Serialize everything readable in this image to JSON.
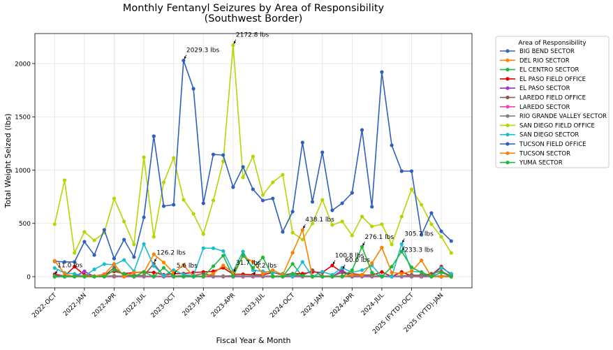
{
  "chart_data": {
    "type": "line",
    "title": "Monthly Fentanyl Seizures by Area of Responsibility",
    "subtitle": "(Southwest Border)",
    "xlabel": "Fiscal Year & Month",
    "ylabel": "Total Weight Seized (lbs)",
    "ylim": [
      -105,
      2282
    ],
    "yticks": [
      0,
      500,
      1000,
      1500,
      2000
    ],
    "month_count": 41,
    "xticks": [
      {
        "index": 0,
        "label": "2022-OCT"
      },
      {
        "index": 3,
        "label": "2022-JAN"
      },
      {
        "index": 6,
        "label": "2022-APR"
      },
      {
        "index": 9,
        "label": "2022-JUL"
      },
      {
        "index": 12,
        "label": "2023-OCT"
      },
      {
        "index": 15,
        "label": "2023-JAN"
      },
      {
        "index": 18,
        "label": "2023-APR"
      },
      {
        "index": 21,
        "label": "2023-JUL"
      },
      {
        "index": 24,
        "label": "2024-OCT"
      },
      {
        "index": 27,
        "label": "2024-JAN"
      },
      {
        "index": 30,
        "label": "2024-APR"
      },
      {
        "index": 33,
        "label": "2024-JUL"
      },
      {
        "index": 36,
        "label": "2025 (FYTD)-OCT"
      },
      {
        "index": 39,
        "label": "2025 (FYTD)-JAN"
      }
    ],
    "grid": true,
    "legend": {
      "title": "Area of Responsibility",
      "placement": "outside-right"
    },
    "series": [
      {
        "name": "BIG BEND SECTOR",
        "color": "#3465c0",
        "values": [
          2,
          1,
          2,
          1,
          0,
          2,
          1,
          1,
          2,
          1,
          3,
          1,
          0,
          2,
          1,
          1,
          2,
          1,
          0,
          1,
          2,
          1,
          1,
          0,
          2,
          1,
          0,
          1,
          2,
          1,
          0,
          1,
          1,
          2,
          0,
          1,
          1,
          0,
          1,
          2,
          1
        ]
      },
      {
        "name": "DEL RIO SECTOR",
        "color": "#ff8000",
        "values": [
          5,
          2,
          3,
          1,
          2,
          4,
          10,
          2,
          3,
          2,
          5,
          2,
          3,
          2,
          1,
          2,
          3,
          4,
          2,
          5,
          3,
          2,
          4,
          2,
          3,
          5,
          2,
          1,
          2,
          3,
          2,
          4,
          3,
          2,
          1,
          3,
          2,
          3,
          1,
          2,
          1
        ]
      },
      {
        "name": "EL CENTRO SECTOR",
        "color": "#1fb83a",
        "values": [
          0,
          0,
          0,
          0,
          0,
          0,
          0,
          0,
          0,
          0,
          0,
          0,
          0,
          0,
          0,
          0,
          0,
          0,
          0,
          0,
          0,
          0,
          0,
          0,
          120,
          0,
          0,
          0,
          0,
          0,
          0,
          0,
          0,
          0,
          0,
          0,
          0,
          0,
          0,
          0,
          0
        ]
      },
      {
        "name": "EL PASO FIELD OFFICE",
        "color": "#e00000",
        "values": [
          22,
          5,
          94,
          17,
          5,
          22,
          50,
          28,
          39,
          44,
          39,
          17,
          28,
          28,
          39,
          44,
          50,
          83,
          22,
          22,
          17,
          17,
          39,
          17,
          28,
          28,
          44,
          39,
          105,
          39,
          28,
          17,
          13,
          44,
          0,
          44,
          7,
          17,
          13,
          94,
          17
        ]
      },
      {
        "name": "EL PASO SECTOR",
        "color": "#9933cc",
        "values": [
          0,
          0,
          0,
          50,
          0,
          0,
          0,
          0,
          0,
          0,
          0,
          0,
          0,
          0,
          0,
          0,
          0,
          0,
          0,
          0,
          0,
          0,
          0,
          0,
          0,
          0,
          0,
          0,
          0,
          60,
          0,
          0,
          0,
          0,
          0,
          0,
          0,
          0,
          0,
          0,
          0
        ]
      },
      {
        "name": "LAREDO FIELD OFFICE",
        "color": "#8c564b",
        "values": [
          10,
          5,
          10,
          5,
          5,
          10,
          83,
          10,
          15,
          10,
          122,
          5,
          5,
          10,
          10,
          30,
          5,
          5,
          10,
          5,
          5,
          5,
          5,
          5,
          10,
          10,
          61,
          5,
          5,
          39,
          5,
          17,
          5,
          5,
          5,
          5,
          17,
          10,
          28,
          50,
          5
        ]
      },
      {
        "name": "LAREDO SECTOR",
        "color": "#ee44bb",
        "values": [
          0,
          0,
          0,
          0,
          0,
          0,
          0,
          0,
          0,
          0,
          0,
          0,
          0,
          0,
          0,
          0,
          0,
          0,
          0,
          0,
          0,
          0,
          0,
          0,
          0,
          0,
          0,
          0,
          0,
          0,
          5,
          0,
          0,
          0,
          0,
          0,
          0,
          0,
          0,
          0,
          0
        ]
      },
      {
        "name": "RIO GRANDE VALLEY SECTOR",
        "color": "#808080",
        "values": [
          5,
          5,
          5,
          5,
          5,
          5,
          5,
          5,
          5,
          5,
          5,
          5,
          5,
          5,
          5,
          5,
          5,
          5,
          5,
          5,
          5,
          5,
          5,
          5,
          5,
          5,
          5,
          5,
          5,
          5,
          5,
          5,
          5,
          5,
          5,
          5,
          5,
          5,
          5,
          5,
          5
        ]
      },
      {
        "name": "SAN DIEGO FIELD OFFICE",
        "color": "#b5d600",
        "values": [
          492,
          905,
          223,
          420,
          341,
          413,
          734,
          518,
          302,
          1121,
          374,
          885,
          1115,
          721,
          590,
          400,
          715,
          1082,
          2173,
          931,
          1128,
          767,
          885,
          957,
          413,
          348,
          498,
          721,
          485,
          518,
          387,
          564,
          472,
          492,
          302,
          564,
          820,
          675,
          492,
          374,
          223
        ]
      },
      {
        "name": "SAN DIEGO SECTOR",
        "color": "#17becf",
        "values": [
          81,
          35,
          26,
          5,
          68,
          118,
          111,
          157,
          50,
          306,
          100,
          10,
          61,
          20,
          10,
          267,
          267,
          240,
          50,
          236,
          61,
          50,
          39,
          28,
          0,
          138,
          0,
          46,
          17,
          83,
          39,
          61,
          105,
          0,
          0,
          306,
          50,
          44,
          0,
          83,
          28
        ]
      },
      {
        "name": "TUCSON FIELD OFFICE",
        "color": "#2f5fbf",
        "values": [
          144,
          138,
          138,
          328,
          203,
          439,
          170,
          347,
          184,
          557,
          1318,
          662,
          675,
          2029,
          1764,
          688,
          1147,
          1141,
          840,
          1030,
          820,
          715,
          734,
          420,
          610,
          1259,
          702,
          1167,
          623,
          689,
          787,
          1377,
          656,
          1921,
          1233,
          990,
          990,
          393,
          597,
          426,
          334
        ]
      },
      {
        "name": "TUCSON SECTOR",
        "color": "#ff8000",
        "values": [
          149,
          28,
          0,
          5,
          5,
          20,
          120,
          0,
          39,
          39,
          210,
          133,
          35,
          109,
          0,
          0,
          28,
          105,
          39,
          192,
          138,
          28,
          61,
          17,
          225,
          438,
          0,
          0,
          0,
          0,
          17,
          17,
          127,
          273,
          39,
          28,
          50,
          153,
          0,
          0,
          0
        ]
      },
      {
        "name": "YUMA SECTOR",
        "color": "#1fb83a",
        "values": [
          0,
          0,
          0,
          0,
          0,
          0,
          61,
          27,
          0,
          45,
          0,
          83,
          0,
          0,
          0,
          0,
          98,
          197,
          0,
          203,
          83,
          181,
          0,
          0,
          28,
          7,
          0,
          0,
          0,
          0,
          61,
          280,
          39,
          0,
          94,
          236,
          87,
          39,
          0,
          39,
          0
        ]
      }
    ],
    "annotations": [
      {
        "index": 0,
        "value": 11.0,
        "text": "11.0 lbs"
      },
      {
        "index": 13,
        "value": 2029.3,
        "text": "2029.3 lbs"
      },
      {
        "index": 10,
        "value": 126.2,
        "text": "126.2 lbs"
      },
      {
        "index": 12,
        "value": 5.6,
        "text": "5.6 lbs"
      },
      {
        "index": 18,
        "value": 2172.8,
        "text": "2172.8 lbs"
      },
      {
        "index": 18,
        "value": 31.7,
        "text": "31.7 lbs"
      },
      {
        "index": 20,
        "value": 5.2,
        "text": "5.2 lbs"
      },
      {
        "index": 25,
        "value": 438.1,
        "text": "438.1 lbs"
      },
      {
        "index": 28,
        "value": 100.8,
        "text": "100.8 lbs"
      },
      {
        "index": 29,
        "value": 60.0,
        "text": "60.0 lbs"
      },
      {
        "index": 31,
        "value": 276.1,
        "text": "276.1 lbs"
      },
      {
        "index": 35,
        "value": 305.7,
        "text": "305.7 lbs"
      },
      {
        "index": 35,
        "value": 233.3,
        "text": "233.3 lbs"
      }
    ]
  }
}
